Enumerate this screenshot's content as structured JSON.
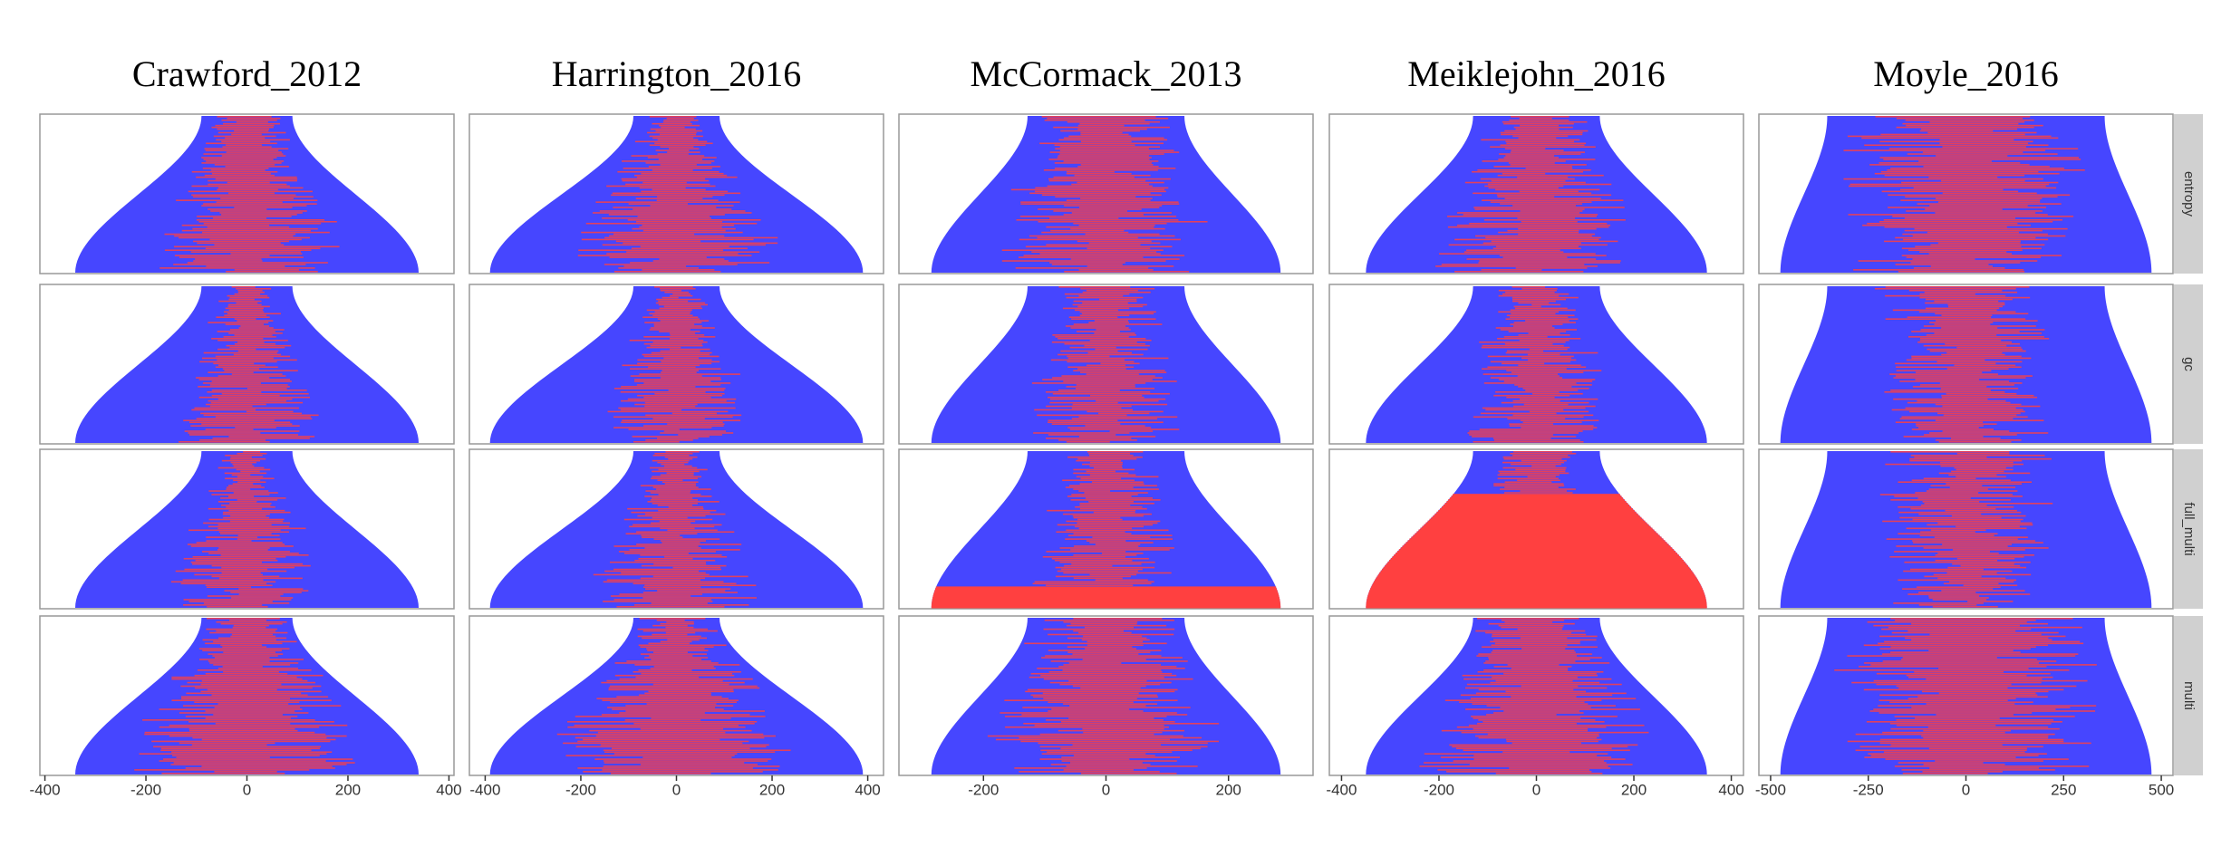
{
  "chart_data": {
    "type": "envelope-facets",
    "columns": [
      {
        "title": "Crawford_2012",
        "xlim": [
          -410,
          410
        ],
        "xticks": [
          -400,
          -200,
          0,
          200,
          400
        ],
        "envelope": {
          "top_halfwidth": 90,
          "bottom_halfwidth": 340
        }
      },
      {
        "title": "Harrington_2016",
        "xlim": [
          -433,
          433
        ],
        "xticks": [
          -400,
          -200,
          0,
          200,
          400
        ],
        "envelope": {
          "top_halfwidth": 90,
          "bottom_halfwidth": 390
        }
      },
      {
        "title": "McCormack_2013",
        "xlim": [
          -338,
          338
        ],
        "xticks": [
          -200,
          0,
          200
        ],
        "envelope": {
          "top_halfwidth": 128,
          "bottom_halfwidth": 285
        }
      },
      {
        "title": "Meiklejohn_2016",
        "xlim": [
          -425,
          425
        ],
        "xticks": [
          -400,
          -200,
          0,
          200,
          400
        ],
        "envelope": {
          "top_halfwidth": 130,
          "bottom_halfwidth": 350
        }
      },
      {
        "title": "Moyle_2016",
        "xlim": [
          -530,
          530
        ],
        "xticks": [
          -500,
          -250,
          0,
          250,
          500
        ],
        "envelope": {
          "top_halfwidth": 355,
          "bottom_halfwidth": 475
        }
      }
    ],
    "rows": [
      "entropy",
      "gc",
      "full_multi",
      "multi"
    ],
    "colors": {
      "fill": "#4646ff",
      "highlight": "#ff4040"
    },
    "solid_highlight_below": [
      [
        null,
        null,
        null,
        null,
        null
      ],
      [
        null,
        null,
        null,
        null,
        null
      ],
      [
        null,
        null,
        0.86,
        0.27,
        null
      ],
      [
        null,
        null,
        null,
        null,
        null
      ]
    ]
  }
}
